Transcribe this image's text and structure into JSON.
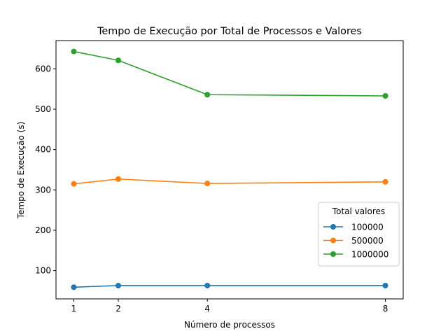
{
  "chart_data": {
    "type": "line",
    "title": "Tempo de Execução por Total de Processos e Valores",
    "xlabel": "Número de processos",
    "ylabel": "Tempo de Execução (s)",
    "x": [
      1,
      2,
      4,
      8
    ],
    "x_ticks": [
      1,
      2,
      4,
      8
    ],
    "y_ticks": [
      100,
      200,
      300,
      400,
      500,
      600
    ],
    "xlim": [
      0.6,
      8.4
    ],
    "ylim": [
      30,
      670
    ],
    "grid": false,
    "legend": {
      "title": "Total valores",
      "placement": "lower-right"
    },
    "series": [
      {
        "name": "100000",
        "color": "#1f77b4",
        "values": [
          59,
          63,
          63,
          63
        ]
      },
      {
        "name": "500000",
        "color": "#ff7f0e",
        "values": [
          315,
          327,
          316,
          320
        ]
      },
      {
        "name": "1000000",
        "color": "#2ca02c",
        "values": [
          643,
          621,
          536,
          533
        ]
      }
    ]
  }
}
